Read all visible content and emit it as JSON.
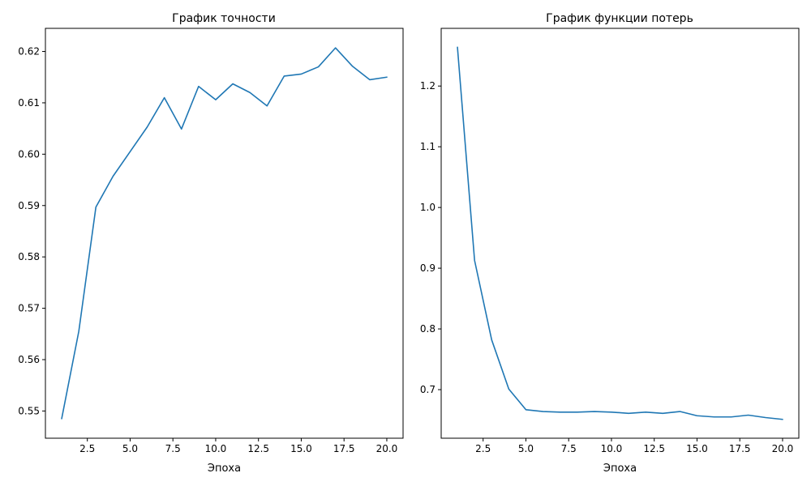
{
  "chart_data": [
    {
      "type": "line",
      "title": "График точности",
      "xlabel": "Эпоха",
      "ylabel": "",
      "x": [
        1,
        2,
        3,
        4,
        5,
        6,
        7,
        8,
        9,
        10,
        11,
        12,
        13,
        14,
        15,
        16,
        17,
        18,
        19,
        20
      ],
      "series": [
        {
          "color": "#1f77b4",
          "values": [
            0.5485,
            0.5655,
            0.5897,
            0.5957,
            0.6005,
            0.6053,
            0.611,
            0.6049,
            0.6132,
            0.6106,
            0.6137,
            0.612,
            0.6094,
            0.6152,
            0.6156,
            0.617,
            0.6207,
            0.6171,
            0.6145,
            0.615
          ]
        }
      ],
      "xlim": [
        0.05,
        20.95
      ],
      "ylim": [
        0.5447,
        0.6245
      ],
      "xticks": [
        2.5,
        5.0,
        7.5,
        10.0,
        12.5,
        15.0,
        17.5,
        20.0
      ],
      "xtick_labels": [
        "2.5",
        "5.0",
        "7.5",
        "10.0",
        "12.5",
        "15.0",
        "17.5",
        "20.0"
      ],
      "yticks": [
        0.55,
        0.56,
        0.57,
        0.58,
        0.59,
        0.6,
        0.61,
        0.62
      ],
      "ytick_labels": [
        "0.55",
        "0.56",
        "0.57",
        "0.58",
        "0.59",
        "0.60",
        "0.61",
        "0.62"
      ],
      "grid": false,
      "legend": "none"
    },
    {
      "type": "line",
      "title": "График функции потерь",
      "xlabel": "Эпоха",
      "ylabel": "",
      "x": [
        1,
        2,
        3,
        4,
        5,
        6,
        7,
        8,
        9,
        10,
        11,
        12,
        13,
        14,
        15,
        16,
        17,
        18,
        19,
        20
      ],
      "series": [
        {
          "color": "#1f77b4",
          "values": [
            1.264,
            0.913,
            0.782,
            0.701,
            0.667,
            0.664,
            0.663,
            0.663,
            0.664,
            0.663,
            0.661,
            0.663,
            0.661,
            0.664,
            0.657,
            0.655,
            0.655,
            0.658,
            0.654,
            0.651
          ]
        }
      ],
      "xlim": [
        0.05,
        20.95
      ],
      "ylim": [
        0.62,
        1.295
      ],
      "xticks": [
        2.5,
        5.0,
        7.5,
        10.0,
        12.5,
        15.0,
        17.5,
        20.0
      ],
      "xtick_labels": [
        "2.5",
        "5.0",
        "7.5",
        "10.0",
        "12.5",
        "15.0",
        "17.5",
        "20.0"
      ],
      "yticks": [
        0.7,
        0.8,
        0.9,
        1.0,
        1.1,
        1.2
      ],
      "ytick_labels": [
        "0.7",
        "0.8",
        "0.9",
        "1.0",
        "1.1",
        "1.2"
      ],
      "grid": false,
      "legend": "none"
    }
  ]
}
